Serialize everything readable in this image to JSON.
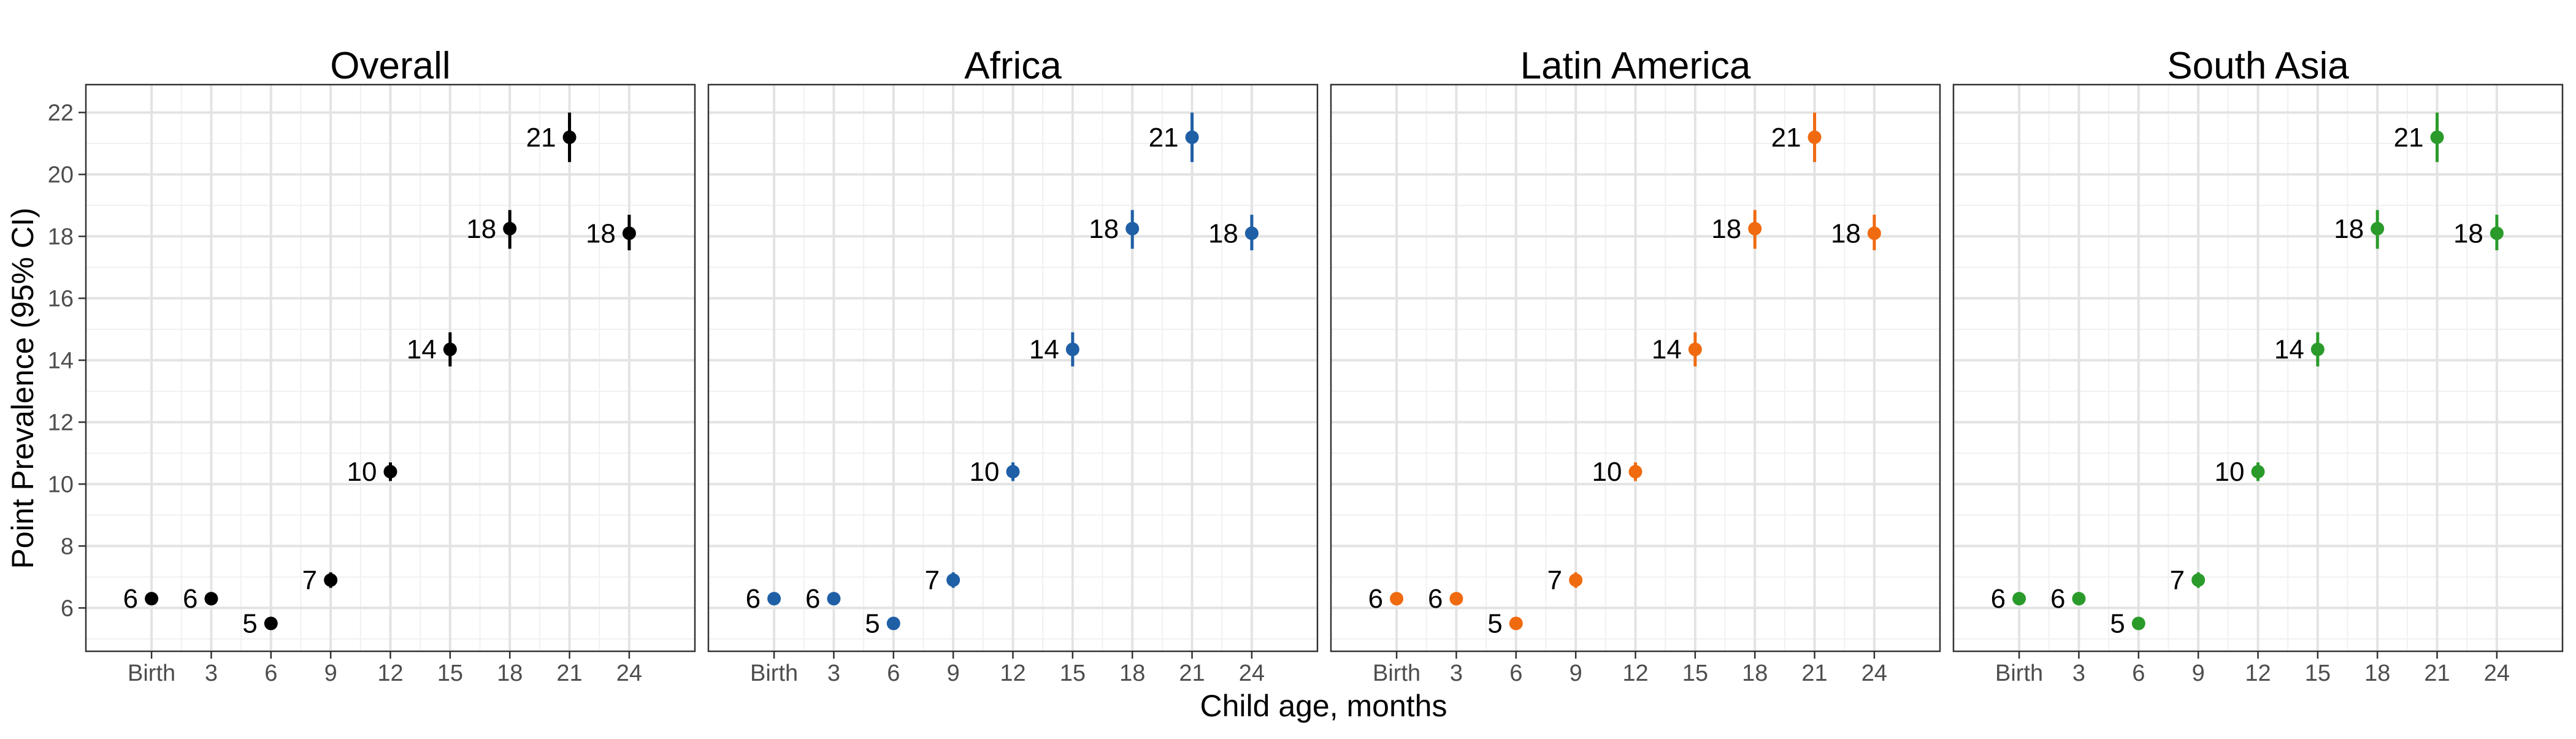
{
  "chart_data": {
    "type": "scatter",
    "xlabel": "Child age, months",
    "ylabel": "Point Prevalence (95% CI)",
    "x_tick_labels": [
      "Birth",
      "3",
      "6",
      "9",
      "12",
      "15",
      "18",
      "21",
      "24"
    ],
    "ylim": [
      4.6,
      22.9
    ],
    "y_ticks": [
      6,
      8,
      10,
      12,
      14,
      16,
      18,
      20,
      22
    ],
    "grid": true,
    "panels": [
      {
        "title": "Overall",
        "color": "#000000",
        "x": [
          0,
          3,
          6,
          9,
          12,
          15,
          18,
          21,
          24
        ],
        "y": [
          6.3,
          6.3,
          5.5,
          6.9,
          10.4,
          14.35,
          18.25,
          21.2,
          18.1
        ],
        "ci_low": [
          6.1,
          6.1,
          5.3,
          6.65,
          10.1,
          13.8,
          17.6,
          20.4,
          17.55
        ],
        "ci_high": [
          6.5,
          6.5,
          5.7,
          7.15,
          10.7,
          14.9,
          18.85,
          22.0,
          18.7
        ],
        "labels": [
          "6",
          "6",
          "5",
          "7",
          "10",
          "14",
          "18",
          "21",
          "18"
        ]
      },
      {
        "title": "Africa",
        "color": "#1f5fa6",
        "x": [
          0,
          3,
          6,
          9,
          12,
          15,
          18,
          21,
          24
        ],
        "y": [
          6.3,
          6.3,
          5.5,
          6.9,
          10.4,
          14.35,
          18.25,
          21.2,
          18.1
        ],
        "ci_low": [
          6.1,
          6.1,
          5.3,
          6.65,
          10.1,
          13.8,
          17.6,
          20.4,
          17.55
        ],
        "ci_high": [
          6.5,
          6.5,
          5.7,
          7.15,
          10.7,
          14.9,
          18.85,
          22.0,
          18.7
        ],
        "labels": [
          "6",
          "6",
          "5",
          "7",
          "10",
          "14",
          "18",
          "21",
          "18"
        ]
      },
      {
        "title": "Latin America",
        "color": "#f06a0f",
        "x": [
          0,
          3,
          6,
          9,
          12,
          15,
          18,
          21,
          24
        ],
        "y": [
          6.3,
          6.3,
          5.5,
          6.9,
          10.4,
          14.35,
          18.25,
          21.2,
          18.1
        ],
        "ci_low": [
          6.1,
          6.1,
          5.3,
          6.65,
          10.1,
          13.8,
          17.6,
          20.4,
          17.55
        ],
        "ci_high": [
          6.5,
          6.5,
          5.7,
          7.15,
          10.7,
          14.9,
          18.85,
          22.0,
          18.7
        ],
        "labels": [
          "6",
          "6",
          "5",
          "7",
          "10",
          "14",
          "18",
          "21",
          "18"
        ]
      },
      {
        "title": "South Asia",
        "color": "#2a9b2a",
        "x": [
          0,
          3,
          6,
          9,
          12,
          15,
          18,
          21,
          24
        ],
        "y": [
          6.3,
          6.3,
          5.5,
          6.9,
          10.4,
          14.35,
          18.25,
          21.2,
          18.1
        ],
        "ci_low": [
          6.1,
          6.1,
          5.3,
          6.65,
          10.1,
          13.8,
          17.6,
          20.4,
          17.55
        ],
        "ci_high": [
          6.5,
          6.5,
          5.7,
          7.15,
          10.7,
          14.9,
          18.85,
          22.0,
          18.7
        ],
        "labels": [
          "6",
          "6",
          "5",
          "7",
          "10",
          "14",
          "18",
          "21",
          "18"
        ]
      }
    ]
  }
}
